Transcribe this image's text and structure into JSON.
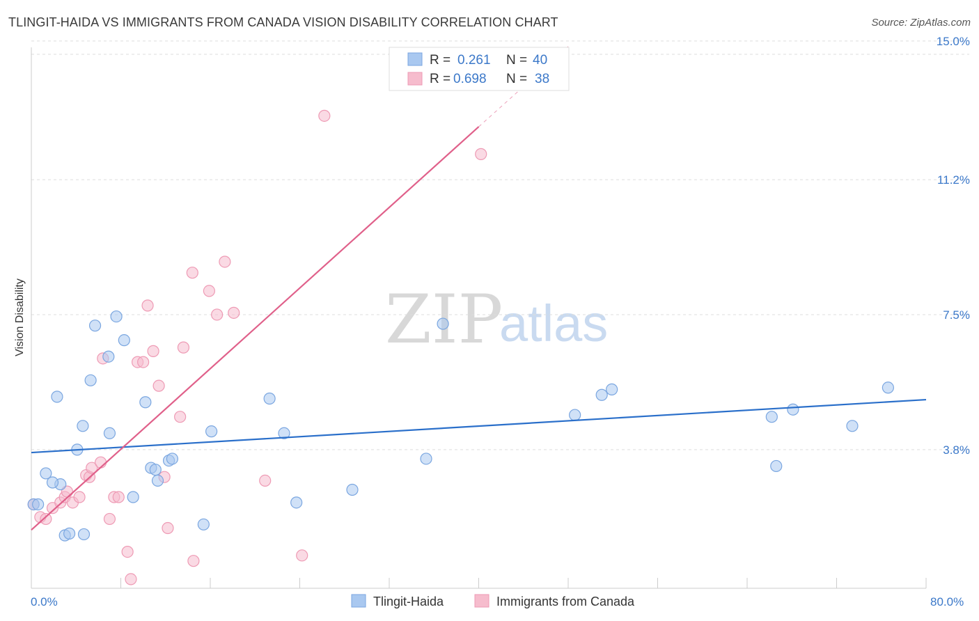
{
  "header": {
    "title": "TLINGIT-HAIDA VS IMMIGRANTS FROM CANADA VISION DISABILITY CORRELATION CHART",
    "source": "Source: ZipAtlas.com"
  },
  "watermark": {
    "zip": "ZIP",
    "atlas": "atlas"
  },
  "colors": {
    "series1_fill": "#a9c8f0",
    "series1_stroke": "#7aa6e0",
    "series1_line": "#2a6fca",
    "series2_fill": "#f6bccd",
    "series2_stroke": "#ee9ab4",
    "series2_line": "#e0608a",
    "tick_text": "#3b78c9",
    "grid": "#dddddd"
  },
  "legend": {
    "rows": [
      {
        "r_label": "R =",
        "r_value": "0.261",
        "n_label": "N =",
        "n_value": "40"
      },
      {
        "r_label": "R =",
        "r_value": "0.698",
        "n_label": "N =",
        "n_value": "38"
      }
    ]
  },
  "bottom_legend": {
    "items": [
      {
        "label": "Tlingit-Haida"
      },
      {
        "label": "Immigrants from Canada"
      }
    ]
  },
  "chart_data": {
    "type": "scatter",
    "title": "TLINGIT-HAIDA VS IMMIGRANTS FROM CANADA VISION DISABILITY CORRELATION CHART",
    "xlabel": "",
    "ylabel": "Vision Disability",
    "xlim": [
      0,
      80
    ],
    "ylim": [
      0,
      15.8
    ],
    "x_tick_labels": [
      "0.0%",
      "80.0%"
    ],
    "y_ticks": [
      3.8,
      7.5,
      11.2,
      15.0
    ],
    "y_tick_labels": [
      "3.8%",
      "7.5%",
      "11.2%",
      "15.0%"
    ],
    "grid": "horizontal dashed",
    "legend_position": "top-center",
    "series": [
      {
        "name": "Tlingit-Haida",
        "R": 0.261,
        "N": 40,
        "trend": {
          "x": [
            0,
            80
          ],
          "y": [
            3.72,
            5.17
          ]
        },
        "points": [
          [
            0.2,
            2.3
          ],
          [
            0.6,
            2.3
          ],
          [
            1.3,
            3.15
          ],
          [
            2.3,
            5.25
          ],
          [
            2.6,
            2.85
          ],
          [
            1.9,
            2.9
          ],
          [
            3.0,
            1.45
          ],
          [
            3.4,
            1.5
          ],
          [
            4.1,
            3.8
          ],
          [
            4.6,
            4.45
          ],
          [
            4.7,
            1.48
          ],
          [
            5.3,
            5.7
          ],
          [
            5.7,
            7.2
          ],
          [
            6.9,
            6.35
          ],
          [
            7.0,
            4.25
          ],
          [
            7.6,
            7.45
          ],
          [
            8.3,
            6.8
          ],
          [
            9.1,
            2.5
          ],
          [
            10.2,
            5.1
          ],
          [
            10.7,
            3.3
          ],
          [
            11.1,
            3.25
          ],
          [
            11.3,
            2.95
          ],
          [
            12.3,
            3.5
          ],
          [
            12.6,
            3.55
          ],
          [
            15.4,
            1.75
          ],
          [
            16.1,
            4.3
          ],
          [
            21.3,
            5.2
          ],
          [
            22.6,
            4.25
          ],
          [
            23.7,
            2.35
          ],
          [
            28.7,
            2.7
          ],
          [
            35.3,
            3.55
          ],
          [
            36.8,
            7.25
          ],
          [
            48.6,
            4.75
          ],
          [
            51.0,
            5.3
          ],
          [
            51.9,
            5.45
          ],
          [
            66.6,
            3.35
          ],
          [
            66.2,
            4.7
          ],
          [
            68.1,
            4.9
          ],
          [
            73.4,
            4.45
          ],
          [
            76.6,
            5.5
          ]
        ]
      },
      {
        "name": "Immigrants from Canada",
        "R": 0.698,
        "N": 38,
        "trend": {
          "x": [
            0,
            40
          ],
          "y": [
            1.6,
            12.65
          ]
        },
        "trend_extension": {
          "x": [
            40,
            48
          ],
          "y": [
            12.65,
            14.85
          ]
        },
        "points": [
          [
            0.2,
            2.3
          ],
          [
            0.8,
            1.95
          ],
          [
            1.3,
            1.9
          ],
          [
            1.9,
            2.2
          ],
          [
            2.6,
            2.35
          ],
          [
            3.0,
            2.5
          ],
          [
            3.2,
            2.65
          ],
          [
            3.7,
            2.35
          ],
          [
            4.3,
            2.5
          ],
          [
            4.9,
            3.1
          ],
          [
            5.2,
            3.05
          ],
          [
            5.4,
            3.3
          ],
          [
            6.4,
            6.3
          ],
          [
            6.2,
            3.45
          ],
          [
            7.0,
            1.9
          ],
          [
            7.4,
            2.5
          ],
          [
            7.8,
            2.5
          ],
          [
            8.6,
            1.0
          ],
          [
            8.9,
            0.25
          ],
          [
            9.5,
            6.2
          ],
          [
            10.0,
            6.2
          ],
          [
            10.4,
            7.75
          ],
          [
            10.9,
            6.5
          ],
          [
            11.4,
            5.55
          ],
          [
            11.9,
            3.05
          ],
          [
            12.2,
            1.65
          ],
          [
            13.3,
            4.7
          ],
          [
            13.6,
            6.6
          ],
          [
            14.4,
            8.65
          ],
          [
            14.5,
            0.75
          ],
          [
            15.9,
            8.15
          ],
          [
            16.6,
            7.5
          ],
          [
            17.3,
            8.95
          ],
          [
            18.1,
            7.55
          ],
          [
            20.9,
            2.95
          ],
          [
            24.2,
            0.9
          ],
          [
            26.2,
            12.95
          ],
          [
            40.2,
            11.9
          ]
        ]
      }
    ]
  }
}
